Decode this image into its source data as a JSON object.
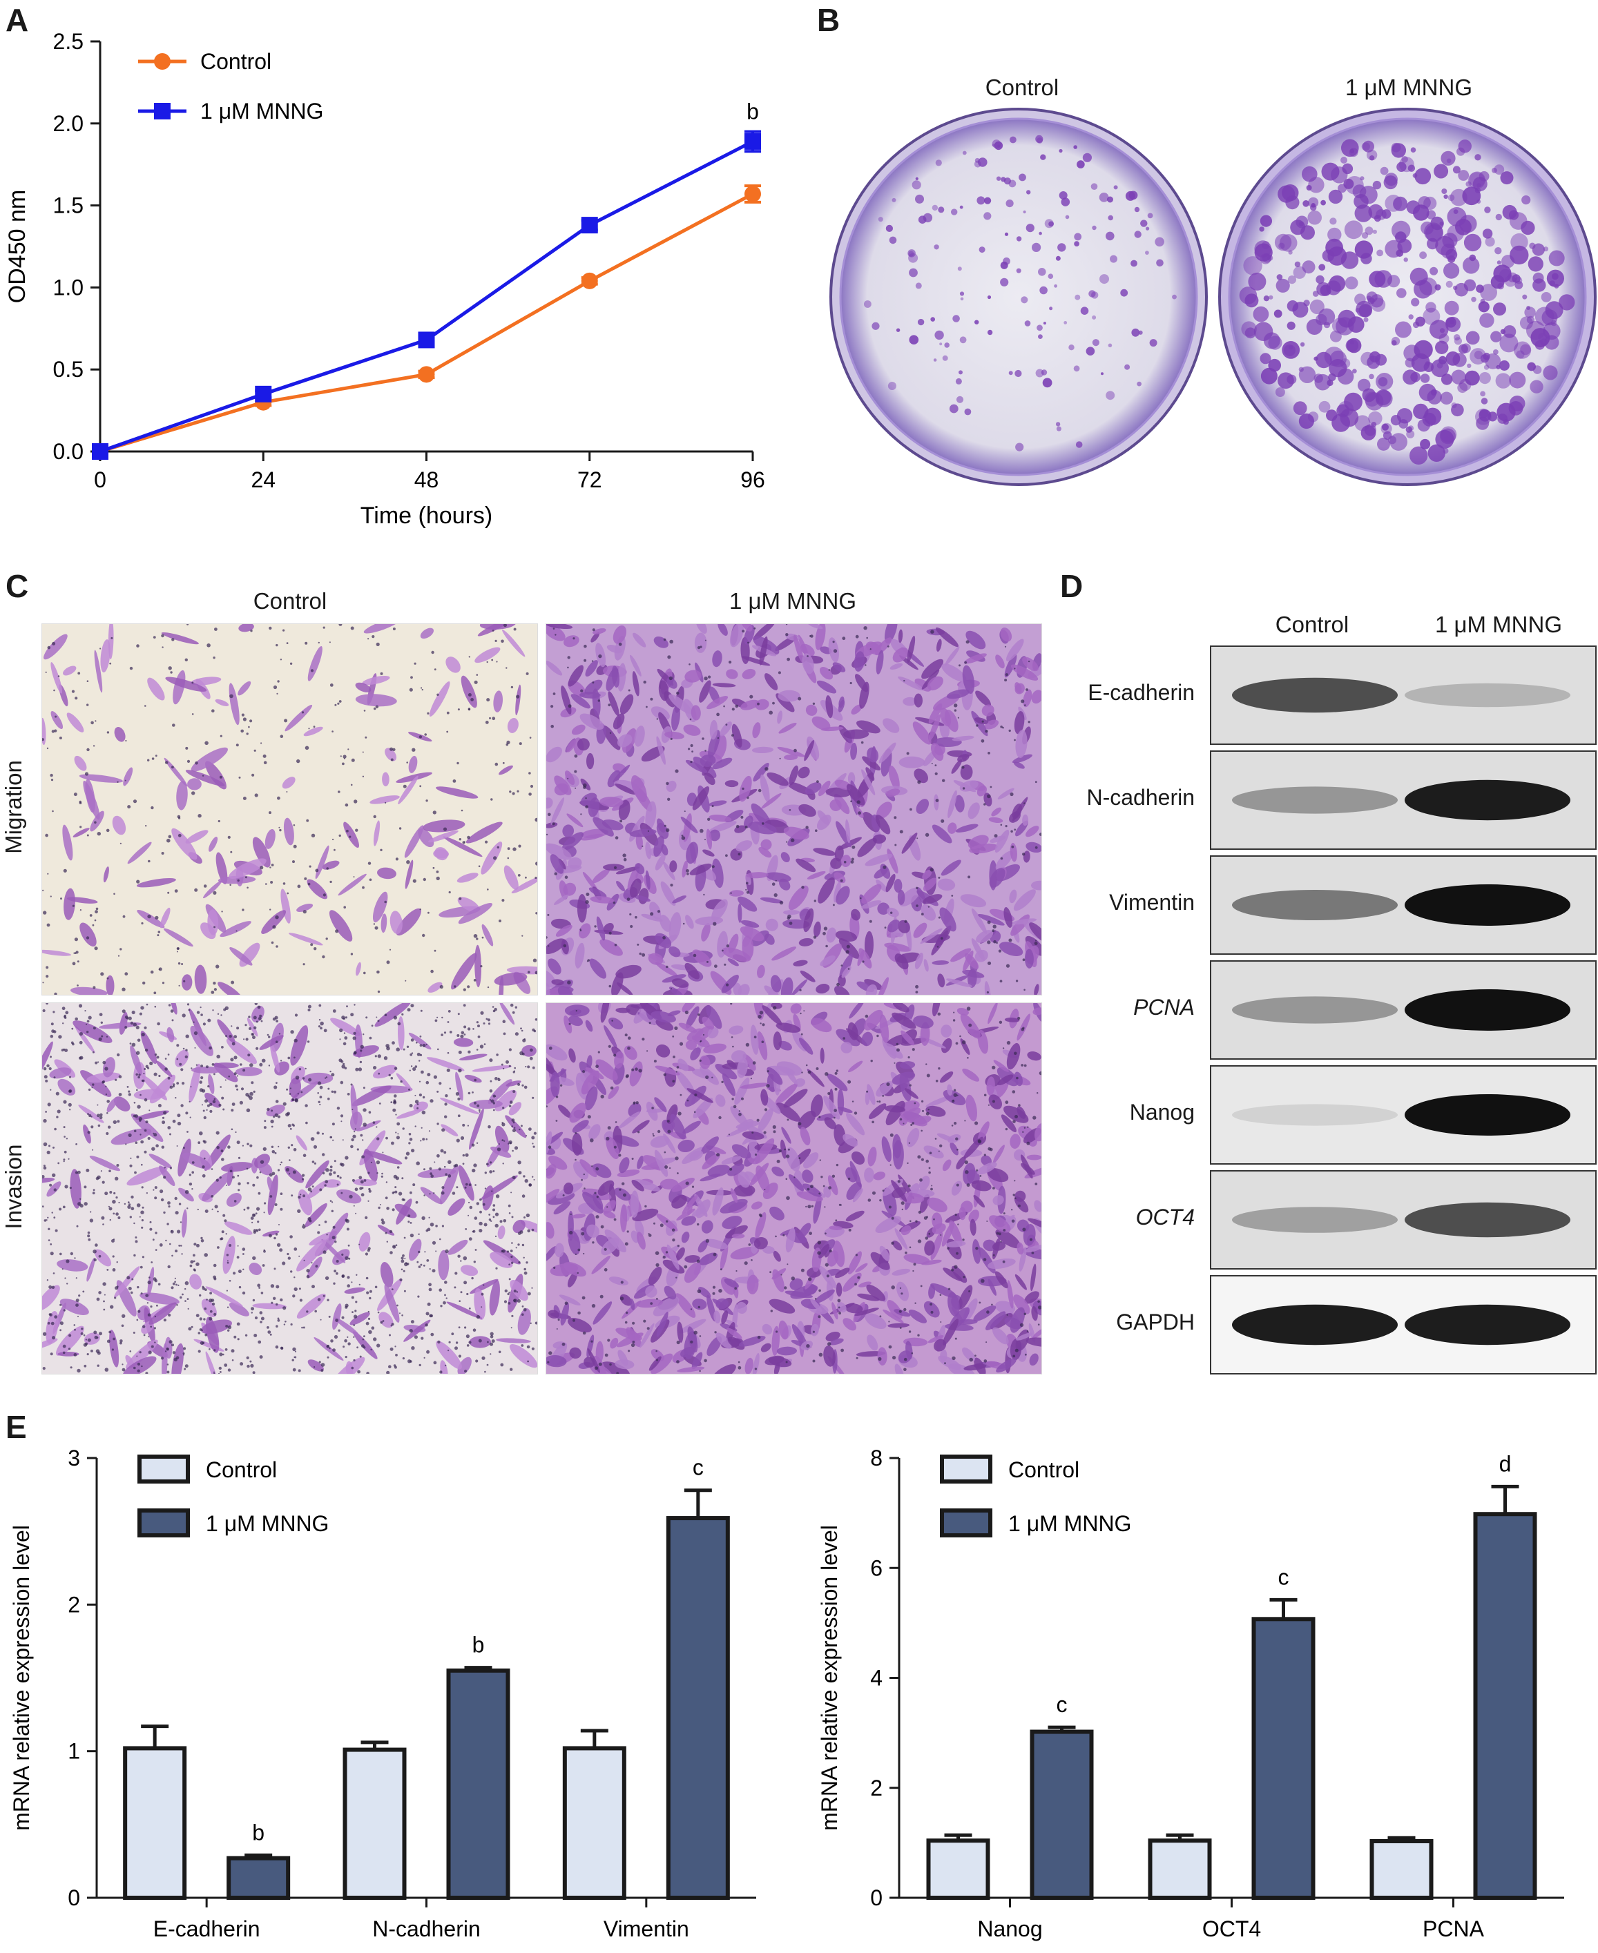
{
  "panels": {
    "a": "A",
    "b": "B",
    "c": "C",
    "d": "D",
    "e": "E"
  },
  "colors": {
    "control_line": "#F37021",
    "mnng_line": "#1A1AE6",
    "control_bar": "#DCE4F2",
    "mnng_bar": "#485A7E",
    "stain": "#7B3FB5"
  },
  "panel_b": {
    "col_labels": [
      "Control",
      "1 μM MNNG"
    ],
    "control_colonies_density": "low",
    "mnng_colonies_density": "high"
  },
  "panel_c": {
    "col_labels": [
      "Control",
      "1 μM MNNG"
    ],
    "row_labels": [
      "Migration",
      "Invasion"
    ]
  },
  "panel_d": {
    "col_labels": [
      "Control",
      "1 μM MNNG"
    ],
    "rows": [
      {
        "label": "E-cadherin",
        "italic": false,
        "control": 0.7,
        "mnng": 0.2
      },
      {
        "label": "N-cadherin",
        "italic": false,
        "control": 0.35,
        "mnng": 0.95
      },
      {
        "label": "Vimentin",
        "italic": false,
        "control": 0.5,
        "mnng": 1.0
      },
      {
        "label": "PCNA",
        "italic": true,
        "control": 0.35,
        "mnng": 1.0
      },
      {
        "label": "Nanog",
        "italic": false,
        "control": 0.1,
        "mnng": 1.0
      },
      {
        "label": "OCT4",
        "italic": true,
        "control": 0.3,
        "mnng": 0.7
      },
      {
        "label": "GAPDH",
        "italic": false,
        "control": 0.95,
        "mnng": 0.95
      }
    ]
  },
  "chart_data": [
    {
      "type": "line",
      "xlabel": "Time (hours)",
      "ylabel": "OD450 nm",
      "x": [
        0,
        24,
        48,
        72,
        96
      ],
      "xticks": [
        "0",
        "24",
        "48",
        "72",
        "96"
      ],
      "ylim": [
        0,
        2.5
      ],
      "yticks": [
        "0.0",
        "0.5",
        "1.0",
        "1.5",
        "2.0",
        "2.5"
      ],
      "legend_position": "top-left",
      "series": [
        {
          "name": "Control",
          "values": [
            0.0,
            0.3,
            0.47,
            1.04,
            1.57
          ],
          "errors": [
            0.01,
            0.02,
            0.02,
            0.02,
            0.05
          ]
        },
        {
          "name": "1 μM MNNG",
          "values": [
            0.0,
            0.35,
            0.68,
            1.38,
            1.89
          ],
          "errors": [
            0.01,
            0.02,
            0.02,
            0.03,
            0.06
          ]
        }
      ],
      "annotations": [
        {
          "x": 96,
          "series": 1,
          "text": "b"
        }
      ]
    },
    {
      "type": "bar",
      "ylabel": "mRNA relative expression level",
      "categories": [
        "E-cadherin",
        "N-cadherin",
        "Vimentin"
      ],
      "ylim": [
        0,
        3
      ],
      "yticks": [
        "0",
        "1",
        "2",
        "3"
      ],
      "legend_position": "top-left",
      "series": [
        {
          "name": "Control",
          "values": [
            1.02,
            1.01,
            1.02
          ],
          "errors": [
            0.15,
            0.05,
            0.12
          ]
        },
        {
          "name": "1 μM MNNG",
          "values": [
            0.27,
            1.55,
            2.59
          ],
          "errors": [
            0.02,
            0.02,
            0.19
          ]
        }
      ],
      "annotations": [
        "b",
        "b",
        "c"
      ]
    },
    {
      "type": "bar",
      "ylabel": "mRNA relative expression level",
      "categories": [
        "Nanog",
        "OCT4",
        "PCNA"
      ],
      "ylim": [
        0,
        8
      ],
      "yticks": [
        "0",
        "2",
        "4",
        "6",
        "8"
      ],
      "legend_position": "top-left",
      "series": [
        {
          "name": "Control",
          "values": [
            1.04,
            1.04,
            1.03
          ],
          "errors": [
            0.1,
            0.1,
            0.06
          ]
        },
        {
          "name": "1 μM MNNG",
          "values": [
            3.02,
            5.07,
            6.98
          ],
          "errors": [
            0.08,
            0.35,
            0.5
          ]
        }
      ],
      "annotations": [
        "c",
        "c",
        "d"
      ]
    }
  ]
}
